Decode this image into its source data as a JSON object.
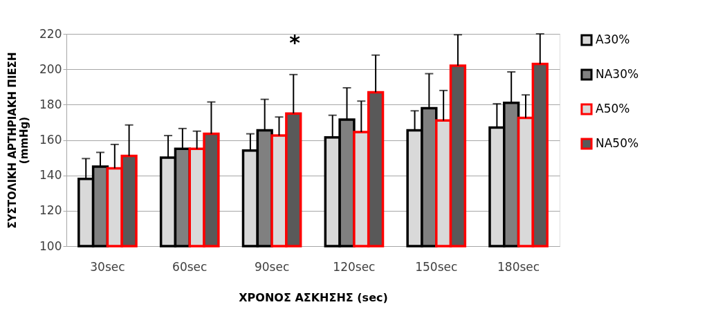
{
  "chart_data": {
    "type": "bar",
    "xlabel": "ΧΡΟΝΟΣ ΑΣΚΗΣΗΣ (sec)",
    "ylabel": "ΣΥΣΤΟΛΙΚΗ ΑΡΤΗΡΙΑΚΗ ΠΙΕΣΗ\n(mmHg)",
    "categories": [
      "30sec",
      "60sec",
      "90sec",
      "120sec",
      "150sec",
      "180sec"
    ],
    "series": [
      {
        "name": "A30%",
        "color": "#d9d9d9",
        "values": [
          138,
          150,
          154,
          161.5,
          165.5,
          167
        ],
        "errors": [
          [
            138,
            149.5
          ],
          [
            150,
            162.5
          ],
          [
            154,
            163.5
          ],
          [
            161.5,
            174
          ],
          [
            165.5,
            176.5
          ],
          [
            167,
            180.5
          ]
        ]
      },
      {
        "name": "NA30%",
        "color": "#808080",
        "values": [
          145,
          155,
          165.5,
          171.5,
          178,
          181
        ],
        "errors": [
          [
            145,
            153
          ],
          [
            155,
            166.5
          ],
          [
            165.5,
            183
          ],
          [
            171.5,
            189.5
          ],
          [
            178,
            197.5
          ],
          [
            181,
            198.5
          ]
        ]
      },
      {
        "name": "A50%",
        "color": "#d9d9d9",
        "values": [
          144,
          155,
          162.5,
          164.5,
          171,
          172.5
        ],
        "errors": [
          [
            144,
            157.5
          ],
          [
            155,
            165
          ],
          [
            162.5,
            173
          ],
          [
            164.5,
            182
          ],
          [
            171,
            188
          ],
          [
            172.5,
            185.5
          ]
        ]
      },
      {
        "name": "NA50%",
        "color": "#595959",
        "values": [
          151,
          163.5,
          175,
          187,
          202,
          203
        ],
        "errors": [
          [
            151,
            168.5
          ],
          [
            163.5,
            181.5
          ],
          [
            175,
            197
          ],
          [
            187,
            208
          ],
          [
            202,
            219.5
          ],
          [
            203,
            220
          ]
        ]
      }
    ],
    "ylim": [
      100,
      220
    ],
    "yticks": [
      100,
      120,
      140,
      160,
      180,
      200,
      220
    ],
    "grid": "y",
    "legend": "right",
    "annotations": [
      "*"
    ]
  }
}
